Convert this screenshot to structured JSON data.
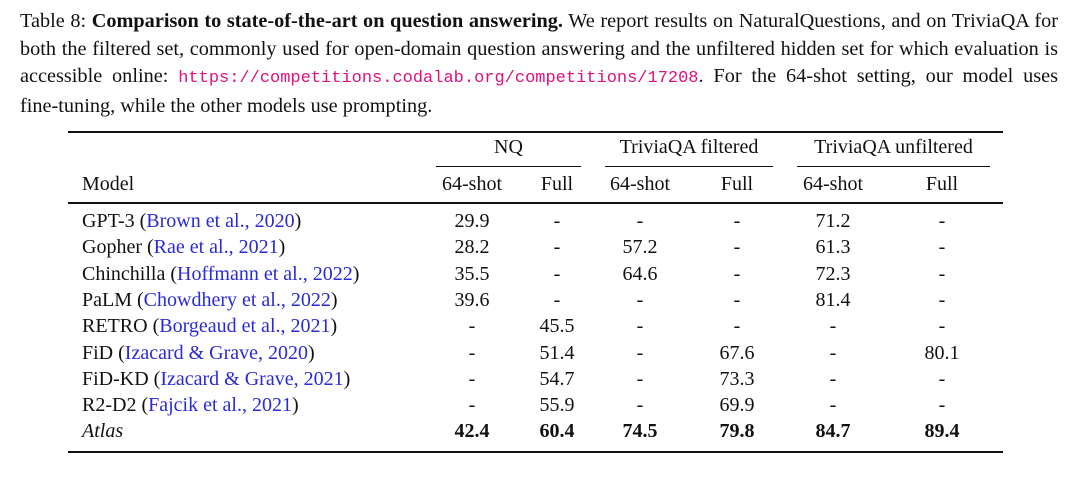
{
  "caption": {
    "label": "Table 8:",
    "title": "Comparison to state-of-the-art on question answering.",
    "text1": "We report results on NaturalQuestions, and on TriviaQA for both the filtered set, commonly used for open-domain question answering and the unfiltered hidden set for which evaluation is accessible online:",
    "url": "https://competitions.codalab.org/competitions/17208",
    "text2": ". For the 64-shot setting, our model uses fine-tuning, while the other models use prompting."
  },
  "table": {
    "groups": [
      "NQ",
      "TriviaQA filtered",
      "TriviaQA unfiltered"
    ],
    "model_header": "Model",
    "subheaders": [
      "64-shot",
      "Full",
      "64-shot",
      "Full",
      "64-shot",
      "Full"
    ],
    "rows": [
      {
        "model": "GPT-3",
        "cite": "Brown et al., 2020",
        "values": [
          "29.9",
          "-",
          "-",
          "-",
          "71.2",
          "-"
        ]
      },
      {
        "model": "Gopher",
        "cite": "Rae et al., 2021",
        "values": [
          "28.2",
          "-",
          "57.2",
          "-",
          "61.3",
          "-"
        ]
      },
      {
        "model": "Chinchilla",
        "cite": "Hoffmann et al., 2022",
        "values": [
          "35.5",
          "-",
          "64.6",
          "-",
          "72.3",
          "-"
        ]
      },
      {
        "model": "PaLM",
        "cite": "Chowdhery et al., 2022",
        "values": [
          "39.6",
          "-",
          "-",
          "-",
          "81.4",
          "-"
        ]
      },
      {
        "model": "RETRO",
        "cite": "Borgeaud et al., 2021",
        "values": [
          "-",
          "45.5",
          "-",
          "-",
          "-",
          "-"
        ]
      },
      {
        "model": "FiD",
        "cite": "Izacard & Grave, 2020",
        "values": [
          "-",
          "51.4",
          "-",
          "67.6",
          "-",
          "80.1"
        ]
      },
      {
        "model": "FiD-KD",
        "cite": "Izacard & Grave, 2021",
        "values": [
          "-",
          "54.7",
          "-",
          "73.3",
          "-",
          "-"
        ]
      },
      {
        "model": "R2-D2",
        "cite": "Fajcik et al., 2021",
        "values": [
          "-",
          "55.9",
          "-",
          "69.9",
          "-",
          "-"
        ]
      },
      {
        "model": "Atlas",
        "cite": "",
        "values": [
          "42.4",
          "60.4",
          "74.5",
          "79.8",
          "84.7",
          "89.4"
        ],
        "highlight": true
      }
    ]
  }
}
